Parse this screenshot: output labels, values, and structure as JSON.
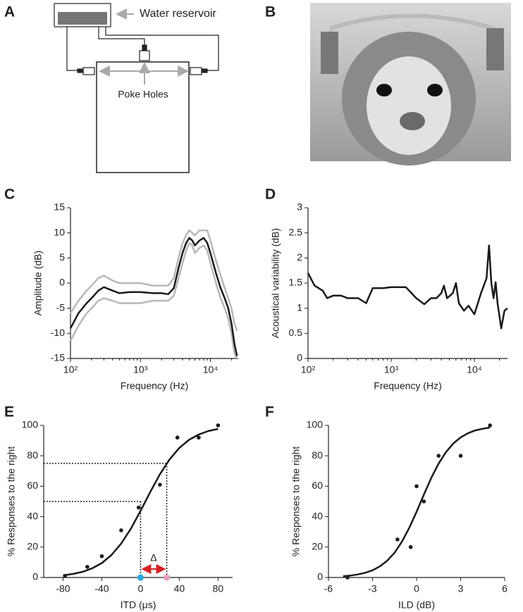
{
  "diagram": {
    "label": "A",
    "reservoir_label": "Water reservoir",
    "holes_label": "Poke Holes"
  },
  "photo": {
    "label": "B"
  },
  "chart_data": [
    {
      "type": "line",
      "panel_label": "C",
      "xlabel": "Frequency (Hz)",
      "ylabel": "Amplitude (dB)",
      "xscale": "log",
      "xlim": [
        100,
        25000
      ],
      "ylim": [
        -15,
        15
      ],
      "xticks": [
        {
          "value": 100,
          "label": "10²"
        },
        {
          "value": 1000,
          "label": "10³"
        },
        {
          "value": 10000,
          "label": "10⁴"
        }
      ],
      "yticks": [
        -15,
        -10,
        -5,
        0,
        5,
        10,
        15
      ],
      "x": [
        100,
        130,
        170,
        200,
        250,
        300,
        400,
        500,
        700,
        1000,
        1500,
        2000,
        2500,
        3000,
        3500,
        4000,
        4500,
        5000,
        5500,
        6000,
        6500,
        7000,
        8000,
        9000,
        10000,
        12000,
        14000,
        16000,
        18000,
        20000,
        22000,
        24000
      ],
      "series": [
        {
          "color": "#b8b8b8",
          "values": [
            -6,
            -3.5,
            -1.5,
            -0.5,
            1,
            1.5,
            0.5,
            0,
            0,
            0,
            -0.5,
            -0.5,
            -0.5,
            1,
            5,
            8,
            9.5,
            10.5,
            10,
            9.5,
            10,
            10.5,
            10.5,
            10.5,
            8.5,
            4.5,
            1.5,
            -1,
            -3,
            -5,
            -8,
            -9.5
          ]
        },
        {
          "color": "#b8b8b8",
          "values": [
            -11.5,
            -8.5,
            -6,
            -5,
            -3.5,
            -3,
            -3.5,
            -4,
            -4,
            -4,
            -3.5,
            -3.5,
            -3.5,
            -2.5,
            1,
            4,
            6.5,
            8,
            7.5,
            6,
            6.5,
            7,
            7.5,
            6.5,
            4,
            0,
            -3,
            -5,
            -7,
            -10,
            -14,
            -15
          ]
        },
        {
          "color": "#1a1a1a",
          "values": [
            -9,
            -6,
            -4,
            -3,
            -1.5,
            -0.8,
            -1.5,
            -2,
            -1.8,
            -1.8,
            -2,
            -2,
            -2.2,
            -1,
            3,
            6,
            8,
            9,
            8.5,
            7.5,
            8,
            8.5,
            9,
            8,
            6,
            2,
            -1,
            -3,
            -5,
            -8,
            -12,
            -14.5
          ]
        }
      ]
    },
    {
      "type": "line",
      "panel_label": "D",
      "xlabel": "Frequency (Hz)",
      "ylabel": "Acoustical variability (dB)",
      "xscale": "log",
      "xlim": [
        100,
        25000
      ],
      "ylim": [
        0,
        3
      ],
      "xticks": [
        {
          "value": 100,
          "label": "10²"
        },
        {
          "value": 1000,
          "label": "10³"
        },
        {
          "value": 10000,
          "label": "10⁴"
        }
      ],
      "yticks": [
        0,
        0.5,
        1,
        1.5,
        2,
        2.5,
        3
      ],
      "x": [
        100,
        120,
        150,
        170,
        200,
        250,
        300,
        400,
        500,
        600,
        800,
        1000,
        1500,
        2000,
        2500,
        3000,
        3500,
        4000,
        4300,
        4700,
        5500,
        6000,
        6500,
        7500,
        8500,
        10000,
        12000,
        14000,
        15000,
        16000,
        17000,
        18000,
        19000,
        21000,
        23000,
        25000
      ],
      "series": [
        {
          "color": "#1a1a1a",
          "values": [
            1.7,
            1.45,
            1.35,
            1.2,
            1.25,
            1.25,
            1.2,
            1.2,
            1.1,
            1.4,
            1.4,
            1.42,
            1.42,
            1.2,
            1.08,
            1.2,
            1.2,
            1.3,
            1.45,
            1.2,
            1.3,
            1.5,
            1.1,
            0.95,
            1.05,
            0.88,
            1.3,
            1.6,
            2.25,
            1.5,
            1.2,
            1.52,
            1.1,
            0.6,
            0.95,
            1.0
          ]
        }
      ]
    },
    {
      "type": "scatter",
      "panel_label": "E",
      "xlabel": "ITD (μs)",
      "ylabel": "% Responses to the right",
      "xlim": [
        -100,
        95
      ],
      "ylim": [
        0,
        100
      ],
      "xticks": [
        -80,
        -40,
        0,
        40,
        80
      ],
      "yticks": [
        0,
        20,
        40,
        60,
        80,
        100
      ],
      "series": [
        {
          "kind": "points",
          "color": "#1a1a1a",
          "x": [
            -78,
            -55,
            -40,
            -20,
            -2,
            20,
            38,
            60,
            80
          ],
          "values": [
            1,
            7,
            14,
            31,
            46,
            61,
            92,
            92,
            100
          ]
        },
        {
          "kind": "curve",
          "color": "#1a1a1a",
          "x": [
            -80,
            -70,
            -60,
            -50,
            -40,
            -30,
            -20,
            -10,
            0,
            10,
            20,
            30,
            40,
            50,
            60,
            70,
            80
          ],
          "values": [
            1.4,
            2.3,
            3.7,
            6.0,
            9.5,
            14.8,
            22.3,
            32.1,
            43.8,
            56.2,
            67.9,
            77.7,
            85.2,
            90.5,
            94.0,
            96.3,
            97.7
          ]
        }
      ],
      "reference_lines": [
        {
          "x": 0,
          "y": 50,
          "color": "#29a8e0"
        },
        {
          "x": 27,
          "y": 75,
          "color": "#e89ac0"
        }
      ],
      "annotation": "Δ",
      "annotation_color": "#d62020"
    },
    {
      "type": "scatter",
      "panel_label": "F",
      "xlabel": "ILD (dB)",
      "ylabel": "% Responses to the right",
      "xlim": [
        -6,
        6
      ],
      "ylim": [
        0,
        100
      ],
      "xticks": [
        -6,
        -3,
        0,
        3,
        6
      ],
      "yticks": [
        0,
        20,
        40,
        60,
        80,
        100
      ],
      "series": [
        {
          "kind": "points",
          "color": "#1a1a1a",
          "x": [
            -4.7,
            -1.3,
            -0.4,
            0,
            0.5,
            1.5,
            3,
            5
          ],
          "values": [
            0,
            25,
            20,
            60,
            50,
            80,
            80,
            100
          ]
        },
        {
          "kind": "curve",
          "color": "#1a1a1a",
          "x": [
            -5,
            -4.5,
            -4,
            -3.5,
            -3,
            -2.5,
            -2,
            -1.5,
            -1,
            -0.5,
            0,
            0.5,
            1,
            1.5,
            2,
            2.5,
            3,
            3.5,
            4,
            4.5,
            5
          ],
          "values": [
            0.8,
            1.3,
            2.0,
            3.1,
            4.7,
            7.3,
            11.0,
            16.3,
            23.5,
            32.6,
            43.2,
            54.5,
            65.4,
            74.9,
            82.4,
            88.1,
            92.1,
            94.8,
            96.7,
            97.8,
            98.6
          ]
        }
      ]
    }
  ]
}
